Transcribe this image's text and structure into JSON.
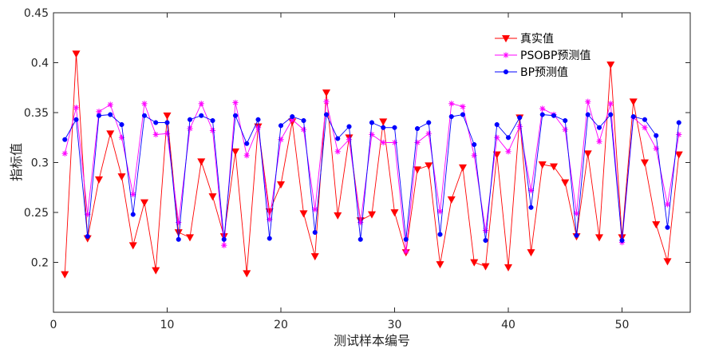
{
  "chart_data": {
    "type": "line",
    "xlabel": "测试样本编号",
    "ylabel": "指标值",
    "xlim": [
      0,
      56
    ],
    "ylim": [
      0.15,
      0.45
    ],
    "xticks": [
      0,
      10,
      20,
      30,
      40,
      50
    ],
    "yticks": [
      0.2,
      0.25,
      0.3,
      0.35,
      0.4,
      0.45
    ],
    "xtick_labels": [
      "0",
      "10",
      "20",
      "30",
      "40",
      "50"
    ],
    "ytick_labels": [
      "0.2",
      "0.25",
      "0.3",
      "0.35",
      "0.4",
      "0.45"
    ],
    "grid": false,
    "legend_position": "top-right",
    "x": [
      1,
      2,
      3,
      4,
      5,
      6,
      7,
      8,
      9,
      10,
      11,
      12,
      13,
      14,
      15,
      16,
      17,
      18,
      19,
      20,
      21,
      22,
      23,
      24,
      25,
      26,
      27,
      28,
      29,
      30,
      31,
      32,
      33,
      34,
      35,
      36,
      37,
      38,
      39,
      40,
      41,
      42,
      43,
      44,
      45,
      46,
      47,
      48,
      49,
      50,
      51,
      52,
      53,
      54,
      55
    ],
    "series": [
      {
        "name": "真实值",
        "color": "#ff0000",
        "marker": "triangle-down",
        "values": [
          0.188,
          0.409,
          0.224,
          0.283,
          0.329,
          0.286,
          0.217,
          0.26,
          0.192,
          0.347,
          0.23,
          0.225,
          0.301,
          0.266,
          0.226,
          0.311,
          0.189,
          0.336,
          0.251,
          0.278,
          0.341,
          0.249,
          0.206,
          0.37,
          0.247,
          0.325,
          0.242,
          0.248,
          0.341,
          0.25,
          0.21,
          0.293,
          0.297,
          0.198,
          0.263,
          0.295,
          0.2,
          0.196,
          0.308,
          0.195,
          0.345,
          0.21,
          0.298,
          0.296,
          0.28,
          0.226,
          0.309,
          0.225,
          0.398,
          0.225,
          0.361,
          0.3,
          0.238,
          0.201,
          0.308
        ]
      },
      {
        "name": "PSOBP预测值",
        "color": "#ff00ff",
        "marker": "asterisk",
        "values": [
          0.309,
          0.355,
          0.248,
          0.351,
          0.358,
          0.325,
          0.268,
          0.359,
          0.328,
          0.329,
          0.24,
          0.334,
          0.359,
          0.332,
          0.217,
          0.36,
          0.307,
          0.335,
          0.243,
          0.323,
          0.343,
          0.333,
          0.253,
          0.361,
          0.311,
          0.323,
          0.24,
          0.328,
          0.32,
          0.32,
          0.211,
          0.32,
          0.329,
          0.251,
          0.359,
          0.356,
          0.307,
          0.232,
          0.325,
          0.311,
          0.336,
          0.272,
          0.354,
          0.348,
          0.333,
          0.249,
          0.361,
          0.321,
          0.359,
          0.22,
          0.345,
          0.335,
          0.314,
          0.258,
          0.328
        ]
      },
      {
        "name": "BP预测值",
        "color": "#0000ff",
        "marker": "circle",
        "values": [
          0.323,
          0.343,
          0.226,
          0.347,
          0.348,
          0.338,
          0.248,
          0.347,
          0.34,
          0.34,
          0.223,
          0.343,
          0.347,
          0.342,
          0.223,
          0.347,
          0.319,
          0.343,
          0.224,
          0.337,
          0.346,
          0.342,
          0.23,
          0.348,
          0.324,
          0.336,
          0.223,
          0.34,
          0.335,
          0.335,
          0.223,
          0.334,
          0.34,
          0.228,
          0.346,
          0.348,
          0.318,
          0.222,
          0.338,
          0.325,
          0.345,
          0.255,
          0.348,
          0.347,
          0.342,
          0.227,
          0.348,
          0.335,
          0.348,
          0.222,
          0.346,
          0.343,
          0.327,
          0.235,
          0.34
        ]
      }
    ]
  }
}
